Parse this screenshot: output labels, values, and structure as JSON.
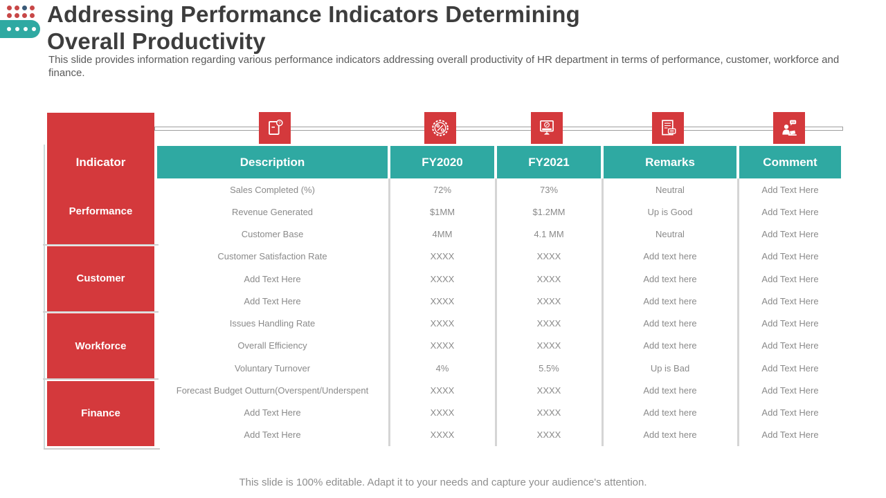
{
  "header": {
    "title_line1": "Addressing Performance Indicators Determining",
    "title_line2": "Overall Productivity",
    "subtitle": "This slide provides information regarding various performance indicators addressing overall productivity of HR department in terms of performance, customer, workforce and finance."
  },
  "table": {
    "columns": {
      "indicator": "Indicator",
      "description": "Description",
      "fy2020": "FY2020",
      "fy2021": "FY2021",
      "remarks": "Remarks",
      "comment": "Comment"
    },
    "column_icons": [
      {
        "name": "document-note-icon",
        "column": "Description"
      },
      {
        "name": "gear-percent-icon",
        "column": "FY2020"
      },
      {
        "name": "monitor-percent-icon",
        "column": "FY2021"
      },
      {
        "name": "document-chat-icon",
        "column": "Remarks"
      },
      {
        "name": "person-laptop-chat-icon",
        "column": "Comment"
      }
    ],
    "groups": [
      {
        "label": "Performance",
        "rows": [
          {
            "description": "Sales Completed (%)",
            "fy2020": "72%",
            "fy2021": "73%",
            "remarks": "Neutral",
            "comment": "Add Text Here"
          },
          {
            "description": "Revenue Generated",
            "fy2020": "$1MM",
            "fy2021": "$1.2MM",
            "remarks": "Up is Good",
            "comment": "Add Text Here"
          },
          {
            "description": "Customer Base",
            "fy2020": "4MM",
            "fy2021": "4.1 MM",
            "remarks": "Neutral",
            "comment": "Add Text Here"
          }
        ]
      },
      {
        "label": "Customer",
        "rows": [
          {
            "description": "Customer Satisfaction Rate",
            "fy2020": "XXXX",
            "fy2021": "XXXX",
            "remarks": "Add text here",
            "comment": "Add Text Here"
          },
          {
            "description": "Add Text Here",
            "fy2020": "XXXX",
            "fy2021": "XXXX",
            "remarks": "Add text here",
            "comment": "Add Text Here"
          },
          {
            "description": "Add Text Here",
            "fy2020": "XXXX",
            "fy2021": "XXXX",
            "remarks": "Add text here",
            "comment": "Add Text Here"
          }
        ]
      },
      {
        "label": "Workforce",
        "rows": [
          {
            "description": "Issues Handling Rate",
            "fy2020": "XXXX",
            "fy2021": "XXXX",
            "remarks": "Add text here",
            "comment": "Add Text Here"
          },
          {
            "description": "Overall Efficiency",
            "fy2020": "XXXX",
            "fy2021": "XXXX",
            "remarks": "Add text here",
            "comment": "Add Text Here"
          },
          {
            "description": "Voluntary Turnover",
            "fy2020": "4%",
            "fy2021": "5.5%",
            "remarks": "Up is Bad",
            "comment": "Add Text Here"
          }
        ]
      },
      {
        "label": "Finance",
        "rows": [
          {
            "description": "Forecast Budget Outturn(Overspent/Underspent",
            "fy2020": "XXXX",
            "fy2021": "XXXX",
            "remarks": "Add text here",
            "comment": "Add Text Here"
          },
          {
            "description": "Add Text Here",
            "fy2020": "XXXX",
            "fy2021": "XXXX",
            "remarks": "Add text here",
            "comment": "Add Text Here"
          },
          {
            "description": "Add Text Here",
            "fy2020": "XXXX",
            "fy2021": "XXXX",
            "remarks": "Add text here",
            "comment": "Add Text Here"
          }
        ]
      }
    ]
  },
  "footer": {
    "note": "This slide is 100% editable. Adapt it to your needs and capture your audience's attention."
  },
  "colors": {
    "accent_red": "#D4393C",
    "accent_teal": "#2FA9A2",
    "title_text": "#3D3D3D",
    "body_text": "#8A8A8A"
  }
}
